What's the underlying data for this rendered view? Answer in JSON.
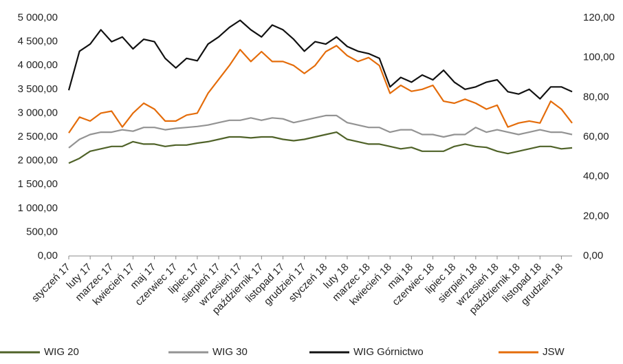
{
  "chart_data": {
    "type": "line",
    "categories": [
      "styczeń 17",
      null,
      "luty 17",
      null,
      "marzec 17",
      null,
      "kwiecień 17",
      null,
      "maj 17",
      null,
      "czerwiec 17",
      null,
      "lipiec 17",
      null,
      "sierpień 17",
      null,
      "wrzesień 17",
      null,
      "październik 17",
      null,
      "listopad 17",
      null,
      "grudzień 17",
      null,
      "styczeń 18",
      null,
      "luty 18",
      null,
      "marzec 18",
      null,
      "kwiecień 18",
      null,
      "maj 18",
      null,
      "czerwiec 18",
      null,
      "lipiec 18",
      null,
      "sierpień 18",
      null,
      "wrzesień 18",
      null,
      "październik 18",
      null,
      "listopad 18",
      null,
      "grudzień 18",
      null
    ],
    "series": [
      {
        "name": "WIG 20",
        "color": "#4f6228",
        "values": [
          1950,
          2050,
          2200,
          2250,
          2300,
          2300,
          2400,
          2350,
          2350,
          2300,
          2330,
          2330,
          2370,
          2400,
          2450,
          2500,
          2500,
          2480,
          2500,
          2500,
          2450,
          2420,
          2450,
          2500,
          2550,
          2600,
          2450,
          2400,
          2350,
          2350,
          2300,
          2250,
          2280,
          2200,
          2200,
          2200,
          2300,
          2350,
          2300,
          2280,
          2200,
          2150,
          2200,
          2250,
          2300,
          2300,
          2250,
          2270
        ]
      },
      {
        "name": "WIG 30",
        "color": "#939393",
        "values": [
          2270,
          2450,
          2550,
          2600,
          2600,
          2650,
          2620,
          2700,
          2700,
          2650,
          2680,
          2700,
          2720,
          2750,
          2800,
          2850,
          2850,
          2900,
          2850,
          2900,
          2880,
          2800,
          2850,
          2900,
          2950,
          2950,
          2800,
          2750,
          2700,
          2700,
          2600,
          2650,
          2650,
          2550,
          2550,
          2500,
          2550,
          2550,
          2700,
          2600,
          2650,
          2600,
          2550,
          2600,
          2650,
          2600,
          2600,
          2550
        ]
      },
      {
        "name": "WIG Górnictwo",
        "color": "#111111",
        "values": [
          3480,
          4300,
          4450,
          4750,
          4500,
          4600,
          4350,
          4550,
          4500,
          4150,
          3950,
          4150,
          4100,
          4450,
          4600,
          4800,
          4950,
          4750,
          4600,
          4850,
          4750,
          4550,
          4300,
          4500,
          4450,
          4600,
          4400,
          4300,
          4250,
          4150,
          3550,
          3750,
          3650,
          3800,
          3700,
          3900,
          3650,
          3500,
          3550,
          3650,
          3700,
          3450,
          3400,
          3500,
          3300,
          3550,
          3550,
          3450
        ]
      },
      {
        "name": "JSW",
        "color": "#e46c0a",
        "axis": "y2",
        "values": [
          62,
          70,
          68,
          72,
          73,
          65,
          72,
          77,
          74,
          68,
          68,
          71,
          72,
          82,
          89,
          96,
          104,
          98,
          103,
          98,
          98,
          96,
          92,
          96,
          103,
          106,
          101,
          98,
          100,
          96,
          82,
          86,
          83,
          84,
          86,
          78,
          77,
          79,
          77,
          74,
          76,
          65,
          67,
          68,
          67,
          78,
          74,
          67
        ]
      }
    ],
    "ylim": [
      0,
      5000
    ],
    "yticks": [
      {
        "value": 0,
        "label": "0,00"
      },
      {
        "value": 500,
        "label": "500,00"
      },
      {
        "value": 1000,
        "label": "1 000,00"
      },
      {
        "value": 1500,
        "label": "1 500,00"
      },
      {
        "value": 2000,
        "label": "2 000,00"
      },
      {
        "value": 2500,
        "label": "2 500,00"
      },
      {
        "value": 3000,
        "label": "3 000,00"
      },
      {
        "value": 3500,
        "label": "3 500,00"
      },
      {
        "value": 4000,
        "label": "4 000,00"
      },
      {
        "value": 4500,
        "label": "4 500,00"
      },
      {
        "value": 5000,
        "label": "5 000,00"
      }
    ],
    "y2lim": [
      0,
      120
    ],
    "y2ticks": [
      {
        "value": 0,
        "label": "0,00"
      },
      {
        "value": 20,
        "label": "20,00"
      },
      {
        "value": 40,
        "label": "40,00"
      },
      {
        "value": 60,
        "label": "60,00"
      },
      {
        "value": 80,
        "label": "80,00"
      },
      {
        "value": 100,
        "label": "100,00"
      },
      {
        "value": 120,
        "label": "120,00"
      }
    ],
    "legend": "bottom"
  }
}
